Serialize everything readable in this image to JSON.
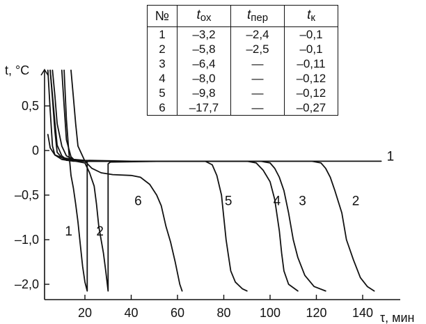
{
  "chart_data": {
    "type": "line",
    "ylabel": "t, °C",
    "xlabel": "τ, мин",
    "xlim": [
      4,
      150
    ],
    "ylim": [
      -2.2,
      0.9
    ],
    "y_display": "The value axis is drawn compressed below −1.0; the tick labelled −2,0 is drawn at the position where a linear scale would place −1,5.",
    "x_ticks": [
      {
        "value": 20,
        "label": "20"
      },
      {
        "value": 40,
        "label": "40"
      },
      {
        "value": 60,
        "label": "60"
      },
      {
        "value": 80,
        "label": "80"
      },
      {
        "value": 100,
        "label": "100"
      },
      {
        "value": 120,
        "label": "120"
      },
      {
        "value": 140,
        "label": "140"
      }
    ],
    "y_ticks": [
      {
        "value": 0.5,
        "label": "0,5"
      },
      {
        "value": 0,
        "label": "0"
      },
      {
        "value": -0.5,
        "label": "–0,5"
      },
      {
        "value": -1.0,
        "label": "–1,0"
      },
      {
        "value": -2.0,
        "label": "–2,0"
      }
    ],
    "series": [
      {
        "name": "1",
        "label_at": [
          152,
          -0.06
        ],
        "points": [
          [
            4,
            0.18
          ],
          [
            5,
            0.03
          ],
          [
            7,
            -0.05
          ],
          [
            10,
            -0.08
          ],
          [
            15,
            -0.1
          ],
          [
            20,
            -0.11
          ],
          [
            40,
            -0.12
          ],
          [
            80,
            -0.12
          ],
          [
            120,
            -0.12
          ],
          [
            148,
            -0.12
          ]
        ]
      },
      {
        "name": "2",
        "label_at": [
          137,
          -0.56
        ],
        "points": [
          [
            6,
            0.9
          ],
          [
            7,
            0.62
          ],
          [
            8,
            0.3
          ],
          [
            10,
            0.05
          ],
          [
            12,
            -0.06
          ],
          [
            15,
            -0.1
          ],
          [
            18,
            -0.11
          ],
          [
            20,
            -0.12
          ],
          [
            60,
            -0.12
          ],
          [
            100,
            -0.12
          ],
          [
            118,
            -0.12
          ],
          [
            122,
            -0.14
          ],
          [
            124,
            -0.2
          ],
          [
            126,
            -0.3
          ],
          [
            128,
            -0.45
          ],
          [
            131,
            -0.7
          ],
          [
            133,
            -1.0
          ],
          [
            136,
            -1.45
          ],
          [
            139,
            -1.85
          ],
          [
            142,
            -2.05
          ],
          [
            145,
            -2.15
          ]
        ]
      },
      {
        "name": "3",
        "label_at": [
          114,
          -0.56
        ],
        "points": [
          [
            5,
            0.9
          ],
          [
            6,
            0.62
          ],
          [
            7,
            0.32
          ],
          [
            8,
            0.06
          ],
          [
            10,
            -0.06
          ],
          [
            12,
            -0.1
          ],
          [
            15,
            -0.11
          ],
          [
            20,
            -0.12
          ],
          [
            60,
            -0.12
          ],
          [
            96,
            -0.12
          ],
          [
            100,
            -0.14
          ],
          [
            102,
            -0.2
          ],
          [
            104,
            -0.3
          ],
          [
            106,
            -0.45
          ],
          [
            108,
            -0.7
          ],
          [
            110,
            -1.0
          ],
          [
            112,
            -1.4
          ],
          [
            115,
            -1.8
          ],
          [
            119,
            -2.05
          ],
          [
            124,
            -2.15
          ]
        ]
      },
      {
        "name": "4",
        "label_at": [
          103,
          -0.56
        ],
        "points": [
          [
            5,
            0.9
          ],
          [
            6,
            0.58
          ],
          [
            7,
            0.22
          ],
          [
            8,
            -0.02
          ],
          [
            10,
            -0.08
          ],
          [
            12,
            -0.11
          ],
          [
            20,
            -0.12
          ],
          [
            60,
            -0.12
          ],
          [
            90,
            -0.12
          ],
          [
            94,
            -0.14
          ],
          [
            97,
            -0.22
          ],
          [
            100,
            -0.35
          ],
          [
            102,
            -0.55
          ],
          [
            104,
            -0.9
          ],
          [
            105,
            -1.3
          ],
          [
            106,
            -1.7
          ],
          [
            108,
            -2.0
          ],
          [
            112,
            -2.15
          ]
        ]
      },
      {
        "name": "5",
        "label_at": [
          82,
          -0.56
        ],
        "points": [
          [
            4,
            0.9
          ],
          [
            5,
            0.45
          ],
          [
            6,
            0.05
          ],
          [
            7,
            -0.05
          ],
          [
            10,
            -0.1
          ],
          [
            15,
            -0.12
          ],
          [
            60,
            -0.12
          ],
          [
            72,
            -0.12
          ],
          [
            75,
            -0.16
          ],
          [
            77,
            -0.28
          ],
          [
            79,
            -0.5
          ],
          [
            80,
            -0.75
          ],
          [
            81,
            -1.0
          ],
          [
            82,
            -1.35
          ],
          [
            83,
            -1.7
          ],
          [
            85,
            -1.95
          ],
          [
            88,
            -2.1
          ],
          [
            90,
            -2.15
          ]
        ]
      },
      {
        "name": "6",
        "label_at": [
          43,
          -0.56
        ],
        "points": [
          [
            14,
            0.9
          ],
          [
            15,
            0.6
          ],
          [
            16,
            0.3
          ],
          [
            17,
            0.05
          ],
          [
            20,
            -0.12
          ],
          [
            23,
            -0.2
          ],
          [
            27,
            -0.25
          ],
          [
            32,
            -0.27
          ],
          [
            40,
            -0.28
          ],
          [
            44,
            -0.3
          ],
          [
            48,
            -0.38
          ],
          [
            51,
            -0.5
          ],
          [
            53,
            -0.62
          ],
          [
            55,
            -0.85
          ],
          [
            57,
            -1.05
          ],
          [
            59,
            -1.5
          ],
          [
            61,
            -2.0
          ],
          [
            62,
            -2.15
          ]
        ]
      },
      {
        "name": "1",
        "label_at": [
          13,
          -0.9
        ],
        "points": [
          [
            11,
            0.9
          ],
          [
            12,
            0.35
          ],
          [
            13,
            0.0
          ],
          [
            14,
            -0.28
          ],
          [
            15,
            -0.42
          ],
          [
            16,
            -0.6
          ],
          [
            17,
            -0.8
          ],
          [
            18,
            -1.1
          ],
          [
            19,
            -1.6
          ],
          [
            20,
            -1.95
          ],
          [
            21,
            -2.15
          ],
          [
            21,
            -0.12
          ],
          [
            22,
            -0.12
          ],
          [
            56,
            -0.12
          ]
        ]
      },
      {
        "name": "2",
        "label_at": [
          26.5,
          -0.9
        ],
        "points": [
          [
            10,
            0.9
          ],
          [
            11,
            0.5
          ],
          [
            12,
            0.12
          ],
          [
            14,
            -0.07
          ],
          [
            16,
            -0.12
          ],
          [
            20,
            -0.14
          ],
          [
            22,
            -0.25
          ],
          [
            24,
            -0.4
          ],
          [
            25,
            -0.6
          ],
          [
            26,
            -0.85
          ],
          [
            28,
            -1.3
          ],
          [
            29,
            -1.7
          ],
          [
            30,
            -2.15
          ],
          [
            30,
            -0.15
          ],
          [
            31,
            -0.13
          ],
          [
            56,
            -0.12
          ]
        ]
      }
    ]
  },
  "table": {
    "headers": {
      "no": "№",
      "t_main": "t",
      "sub_ox": "ох",
      "sub_per": "пер",
      "sub_k": "к"
    },
    "rows": [
      {
        "no": "1",
        "t_ox": "–3,2",
        "t_per": "–2,4",
        "t_k": "–0,1"
      },
      {
        "no": "2",
        "t_ox": "–5,8",
        "t_per": "–2,5",
        "t_k": "–0,1"
      },
      {
        "no": "3",
        "t_ox": "–6,4",
        "t_per": "—",
        "t_k": "–0,11"
      },
      {
        "no": "4",
        "t_ox": "–8,0",
        "t_per": "—",
        "t_k": "–0,12"
      },
      {
        "no": "5",
        "t_ox": "–9,8",
        "t_per": "—",
        "t_k": "–0,12"
      },
      {
        "no": "6",
        "t_ox": "–17,7",
        "t_per": "—",
        "t_k": "–0,27"
      }
    ]
  }
}
